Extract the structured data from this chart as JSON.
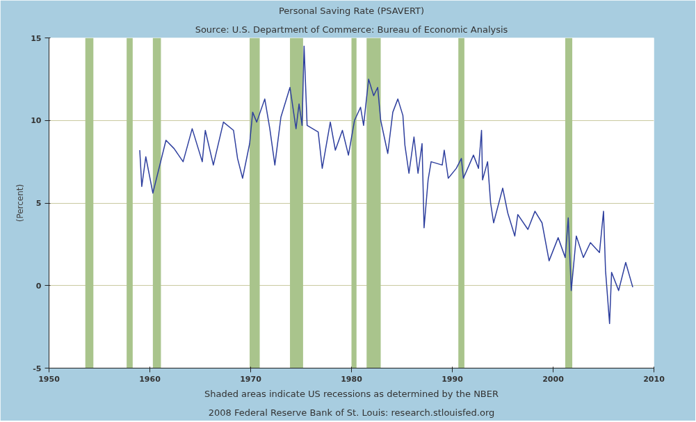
{
  "chart_data": {
    "type": "line",
    "title": "Personal Saving Rate (PSAVERT)",
    "subtitle": "Source: U.S. Department of Commerce: Bureau of Economic Analysis",
    "ylabel": "(Percent)",
    "annotations": [
      "Shaded areas indicate US recessions as determined by the NBER",
      "2008 Federal Reserve Bank of St. Louis: research.stlouisfed.org"
    ],
    "xlim": [
      1950,
      2010
    ],
    "xticks": [
      1950,
      1960,
      1970,
      1980,
      1990,
      2000,
      2010
    ],
    "ylim": [
      -5,
      15
    ],
    "yticks": [
      -5,
      0,
      5,
      10,
      15
    ],
    "grid": "y",
    "marker": "none",
    "line_style": "solid",
    "bands": [
      {
        "axis": "x",
        "from": 1953.6,
        "to": 1954.4,
        "color": "#a9c48c"
      },
      {
        "axis": "x",
        "from": 1957.7,
        "to": 1958.3,
        "color": "#a9c48c"
      },
      {
        "axis": "x",
        "from": 1960.3,
        "to": 1961.1,
        "color": "#a9c48c"
      },
      {
        "axis": "x",
        "from": 1969.9,
        "to": 1970.9,
        "color": "#a9c48c"
      },
      {
        "axis": "x",
        "from": 1973.9,
        "to": 1975.2,
        "color": "#a9c48c"
      },
      {
        "axis": "x",
        "from": 1980.0,
        "to": 1980.5,
        "color": "#a9c48c"
      },
      {
        "axis": "x",
        "from": 1981.5,
        "to": 1982.9,
        "color": "#a9c48c"
      },
      {
        "axis": "x",
        "from": 1990.6,
        "to": 1991.2,
        "color": "#a9c48c"
      },
      {
        "axis": "x",
        "from": 2001.2,
        "to": 2001.9,
        "color": "#a9c48c"
      }
    ],
    "series": [
      {
        "color": "#2e3f9e",
        "x": [
          1959.0,
          1959.2,
          1959.6,
          1960.3,
          1961.6,
          1962.4,
          1963.3,
          1964.2,
          1965.2,
          1965.5,
          1966.3,
          1967.3,
          1968.3,
          1968.7,
          1969.2,
          1969.9,
          1970.2,
          1970.6,
          1971.4,
          1971.9,
          1972.4,
          1973.0,
          1973.9,
          1974.5,
          1974.8,
          1975.1,
          1975.3,
          1975.6,
          1976.7,
          1977.1,
          1977.9,
          1978.4,
          1979.1,
          1979.7,
          1980.3,
          1980.9,
          1981.2,
          1981.7,
          1982.2,
          1982.6,
          1982.9,
          1983.6,
          1984.1,
          1984.6,
          1985.1,
          1985.3,
          1985.7,
          1986.2,
          1986.6,
          1987.0,
          1987.2,
          1987.6,
          1987.9,
          1989.0,
          1989.2,
          1989.6,
          1990.4,
          1990.9,
          1991.1,
          1992.1,
          1992.6,
          1992.9,
          1993.0,
          1993.5,
          1993.8,
          1994.1,
          1995.0,
          1995.5,
          1996.2,
          1996.5,
          1997.5,
          1998.2,
          1998.9,
          1999.6,
          2000.5,
          2001.2,
          2001.5,
          2001.8,
          2002.3,
          2003.0,
          2003.7,
          2004.6,
          2005.0,
          2005.2,
          2005.6,
          2005.8,
          2006.5,
          2007.2,
          2007.9
        ],
        "values": [
          8.2,
          6.0,
          7.8,
          5.6,
          8.8,
          8.3,
          7.5,
          9.5,
          7.5,
          9.4,
          7.3,
          9.9,
          9.4,
          7.7,
          6.5,
          8.6,
          10.5,
          9.9,
          11.3,
          9.5,
          7.3,
          10.2,
          12.0,
          9.5,
          11.0,
          9.7,
          14.5,
          9.7,
          9.3,
          7.1,
          9.9,
          8.2,
          9.4,
          7.9,
          10.0,
          10.8,
          9.7,
          12.5,
          11.5,
          12.0,
          10.0,
          8.0,
          10.5,
          11.3,
          10.3,
          8.5,
          6.8,
          9.0,
          6.8,
          8.6,
          3.5,
          6.4,
          7.5,
          7.3,
          8.2,
          6.5,
          7.1,
          7.7,
          6.5,
          7.9,
          7.1,
          9.4,
          6.4,
          7.5,
          5.0,
          3.8,
          5.9,
          4.4,
          3.0,
          4.3,
          3.4,
          4.5,
          3.8,
          1.5,
          2.9,
          1.7,
          4.1,
          -0.3,
          3.0,
          1.7,
          2.6,
          2.0,
          4.5,
          0.9,
          -2.3,
          0.8,
          -0.3,
          1.4,
          -0.1
        ]
      }
    ]
  }
}
